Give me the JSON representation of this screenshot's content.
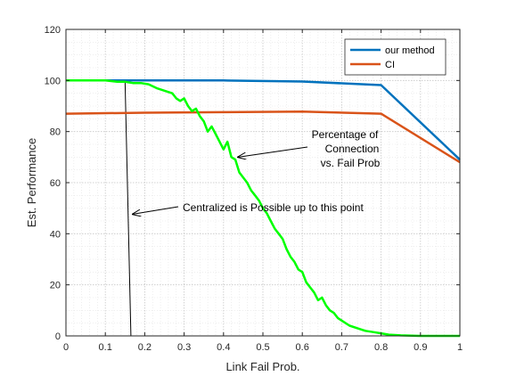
{
  "chart_data": {
    "type": "line",
    "xlabel": "Link Fail Prob.",
    "ylabel": "Est.  Performance",
    "xlim": [
      0,
      1
    ],
    "ylim": [
      0,
      120
    ],
    "xticks": [
      0,
      0.1,
      0.2,
      0.3,
      0.4,
      0.5,
      0.6,
      0.7,
      0.8,
      0.9,
      1
    ],
    "yticks": [
      0,
      20,
      40,
      60,
      80,
      100,
      120
    ],
    "xtick_labels": [
      "0",
      "0.1",
      "0.2",
      "0.3",
      "0.4",
      "0.5",
      "0.6",
      "0.7",
      "0.8",
      "0.9",
      "1"
    ],
    "ytick_labels": [
      "0",
      "20",
      "40",
      "60",
      "80",
      "100",
      "120"
    ],
    "grid": "on (major and minor, dotted)",
    "legend_position": "top-right",
    "series": [
      {
        "name": "our method",
        "color": "#0072BD",
        "in_legend": true,
        "x": [
          0,
          0.2,
          0.4,
          0.6,
          0.8,
          1.0
        ],
        "y": [
          100,
          100,
          100,
          99.6,
          98.2,
          69
        ]
      },
      {
        "name": "CI",
        "color": "#D95319",
        "in_legend": true,
        "x": [
          0,
          0.2,
          0.4,
          0.6,
          0.8,
          1.0
        ],
        "y": [
          87,
          87.4,
          87.6,
          87.8,
          87,
          68
        ]
      },
      {
        "name": "",
        "color": "#00FF00",
        "in_legend": false,
        "x": [
          0,
          0.05,
          0.1,
          0.13,
          0.15,
          0.17,
          0.19,
          0.21,
          0.23,
          0.25,
          0.27,
          0.28,
          0.29,
          0.3,
          0.31,
          0.32,
          0.33,
          0.34,
          0.35,
          0.36,
          0.37,
          0.38,
          0.39,
          0.4,
          0.41,
          0.42,
          0.43,
          0.44,
          0.45,
          0.46,
          0.47,
          0.48,
          0.49,
          0.5,
          0.51,
          0.52,
          0.53,
          0.54,
          0.55,
          0.56,
          0.57,
          0.58,
          0.59,
          0.6,
          0.61,
          0.62,
          0.63,
          0.64,
          0.65,
          0.66,
          0.67,
          0.68,
          0.69,
          0.7,
          0.72,
          0.74,
          0.76,
          0.78,
          0.8,
          0.82,
          0.85,
          0.9,
          1.0
        ],
        "y": [
          100,
          100,
          100,
          99.5,
          99.5,
          99,
          99,
          98.5,
          97,
          96,
          95,
          93,
          92,
          93,
          90,
          88,
          89,
          86,
          84,
          80,
          82,
          79,
          76,
          73,
          76,
          70,
          69,
          64,
          62,
          60,
          57,
          55,
          53,
          50,
          48,
          45,
          42,
          40,
          38,
          34,
          31,
          29,
          26,
          25,
          21,
          19,
          17,
          14,
          15,
          12,
          10,
          9,
          7,
          6,
          4,
          3,
          2,
          1.5,
          1,
          0.5,
          0.2,
          0,
          0
        ]
      },
      {
        "name": "",
        "color": "#000000",
        "in_legend": false,
        "x": [
          0.15,
          0.165
        ],
        "y": [
          100,
          0
        ]
      }
    ],
    "annotations": [
      {
        "lines": [
          "Percentage of",
          "Connection",
          "vs. Fail Prob"
        ],
        "arrow_to": [
          0.43,
          70
        ]
      },
      {
        "lines": [
          "Centralized is Possible up to this point"
        ],
        "arrow_to": [
          0.165,
          48
        ]
      }
    ]
  }
}
